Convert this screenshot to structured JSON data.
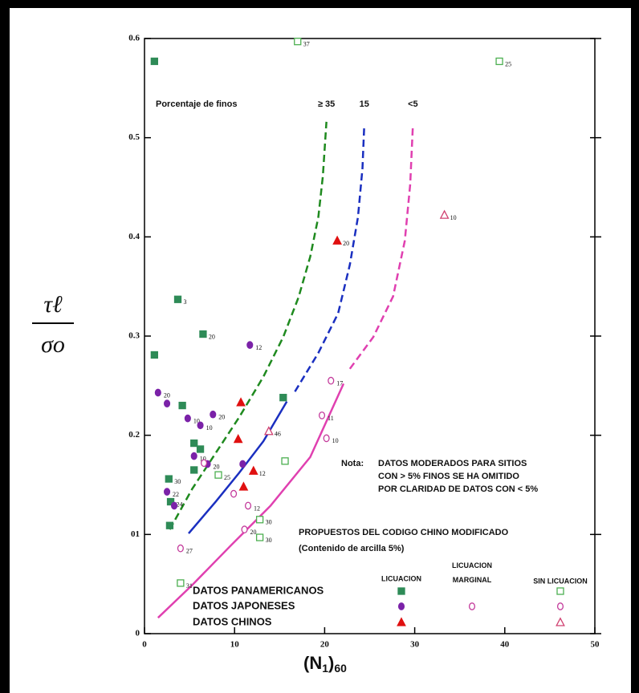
{
  "chart_data": {
    "type": "scatter",
    "xlabel": [
      "(N",
      "1",
      ")",
      "60"
    ],
    "ylabel": {
      "numerator": "τℓ",
      "denominator": "σo"
    },
    "xlim": [
      0,
      50
    ],
    "xticks": [
      0,
      10,
      20,
      30,
      40,
      50
    ],
    "ylim": [
      0,
      0.6
    ],
    "yticks": [
      0,
      {
        "value": 0.1,
        "label": "01"
      },
      0.2,
      0.3,
      0.4,
      0.5,
      0.6
    ],
    "series": [
      {
        "name": "DATOS PANAMERICANOS",
        "group": "LICUACION",
        "marker": "square",
        "filled": true,
        "color": "#2e8b57",
        "x": [
          1.1,
          3.7,
          6.5,
          1.1,
          4.2,
          5.5,
          6.2,
          2.7,
          2.9,
          2.8,
          5.5,
          15.4
        ],
        "values": [
          0.577,
          0.337,
          0.302,
          0.281,
          0.23,
          0.192,
          0.186,
          0.156,
          0.133,
          0.109,
          0.165,
          0.238
        ],
        "labels": [
          null,
          "3",
          "20",
          null,
          null,
          null,
          null,
          "30",
          "24",
          null,
          null,
          null
        ]
      },
      {
        "name": "DATOS JAPONESES",
        "group": "LICUACION",
        "marker": "circle",
        "filled": true,
        "color": "#7b22a8",
        "x": [
          1.5,
          2.5,
          4.8,
          6.2,
          7.6,
          11.7,
          5.5,
          7,
          2.5,
          10.9,
          3.3
        ],
        "values": [
          0.243,
          0.232,
          0.217,
          0.21,
          0.221,
          0.291,
          0.179,
          0.171,
          0.143,
          0.171,
          0.129
        ],
        "labels": [
          "20",
          null,
          "10",
          "10",
          "20",
          "12",
          "10",
          "20",
          "22",
          null,
          null
        ]
      },
      {
        "name": "DATOS CHINOS",
        "group": "LICUACION",
        "marker": "triangle",
        "filled": true,
        "color": "#e01010",
        "x": [
          21.4,
          10.7,
          10.4,
          12.1,
          11
        ],
        "values": [
          0.396,
          0.233,
          0.196,
          0.164,
          0.148
        ],
        "labels": [
          "20",
          null,
          null,
          "12",
          null
        ]
      },
      {
        "name": "DATOS JAPONESES",
        "group": "LICUACION MARGINAL",
        "marker": "circle",
        "filled": false,
        "color": "#c43c9c",
        "x": [
          20.7,
          9.9,
          11.1,
          4,
          11.5,
          6.6
        ],
        "values": [
          0.255,
          0.141,
          0.105,
          0.086,
          0.129,
          0.172
        ],
        "labels": [
          "17",
          null,
          "20",
          "27",
          "12",
          null
        ]
      },
      {
        "name": "DATOS PANAMERICANOS",
        "group": "SIN LICUACION",
        "marker": "square",
        "filled": false,
        "color": "#4caf50",
        "x": [
          39.4,
          15.6,
          8.2,
          12.8,
          12.8,
          4,
          17
        ],
        "values": [
          0.577,
          0.174,
          0.16,
          0.115,
          0.097,
          0.051,
          0.597
        ],
        "labels": [
          "25",
          null,
          "25",
          "30",
          "30",
          "31",
          "37"
        ]
      },
      {
        "name": "DATOS JAPONESES",
        "group": "SIN LICUACION",
        "marker": "circle",
        "filled": false,
        "color": "#c43c9c",
        "x": [
          19.7,
          20.2
        ],
        "values": [
          0.22,
          0.197
        ],
        "labels": [
          "11",
          "10"
        ]
      },
      {
        "name": "DATOS CHINOS",
        "group": "SIN LICUACION",
        "marker": "triangle",
        "filled": false,
        "color": "#d04070",
        "x": [
          33.3,
          13.8
        ],
        "values": [
          0.422,
          0.204
        ],
        "labels": [
          "10",
          "46"
        ]
      }
    ],
    "curves": [
      {
        "label": "≥ 35",
        "color": "#1f8a1f",
        "dashed": true,
        "x": [
          2.8,
          5.3,
          7.9,
          10.5,
          13.2,
          15.4,
          17.1,
          18.4,
          19.3,
          19.8,
          20.2
        ],
        "values": [
          0.105,
          0.146,
          0.182,
          0.218,
          0.259,
          0.299,
          0.339,
          0.38,
          0.42,
          0.461,
          0.516
        ]
      },
      {
        "color": "#1a2fc0",
        "dashed": false,
        "x": [
          4.9,
          7.9,
          10.5,
          13.2,
          15.8
        ],
        "values": [
          0.101,
          0.133,
          0.162,
          0.194,
          0.234
        ]
      },
      {
        "label": "15",
        "color": "#1a2fc0",
        "dashed": true,
        "x": [
          16.7,
          19.3,
          21.5,
          22.8,
          23.7,
          24.2,
          24.4
        ],
        "values": [
          0.244,
          0.283,
          0.323,
          0.372,
          0.42,
          0.469,
          0.513
        ]
      },
      {
        "color": "#e040b0",
        "dashed": false,
        "x": [
          1.5,
          5.3,
          9.6,
          14,
          18.4,
          22.1
        ],
        "values": [
          0.016,
          0.049,
          0.089,
          0.129,
          0.178,
          0.252
        ]
      },
      {
        "label": "<5",
        "color": "#e040b0",
        "dashed": true,
        "x": [
          22.8,
          25.4,
          27.6,
          28.9,
          29.5,
          29.8
        ],
        "values": [
          0.267,
          0.299,
          0.34,
          0.396,
          0.453,
          0.513
        ]
      }
    ],
    "curves_title": "Porcentaje de finos",
    "note": {
      "head": "Nota:",
      "lines": [
        "DATOS MODERADOS PARA SITIOS",
        "CON > 5% FINOS SE HA  OMITIDO",
        "POR CLARIDAD DE DATOS CON < 5%"
      ]
    },
    "annotations": [
      "PROPUESTOS DEL CODIGO CHINO MODIFICADO",
      "(Contenido de arcilla 5%)"
    ]
  }
}
